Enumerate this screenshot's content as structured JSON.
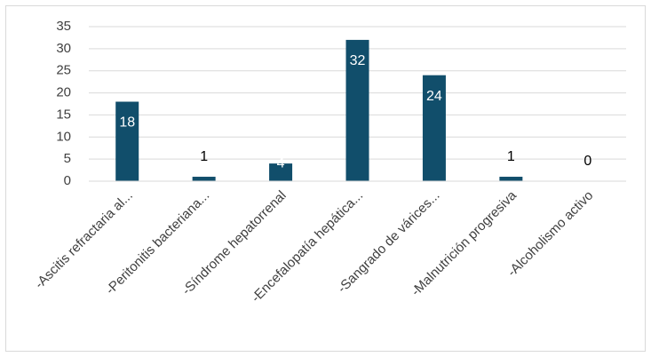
{
  "chart_data": {
    "type": "bar",
    "categories": [
      "-Ascitis refractaria al...",
      "-Peritonitis bacteriana...",
      "-Síndrome hepatorrenal",
      "-Encefalopatía hepática...",
      "-Sangrado de várices...",
      "-Malnutrición progresiva",
      "-Alcoholismo activo"
    ],
    "values": [
      18,
      1,
      4,
      32,
      24,
      1,
      0
    ],
    "color": "#114e6b",
    "ylim": [
      0,
      35
    ],
    "yticks": [
      0,
      5,
      10,
      15,
      20,
      25,
      30,
      35
    ],
    "grid": true
  }
}
